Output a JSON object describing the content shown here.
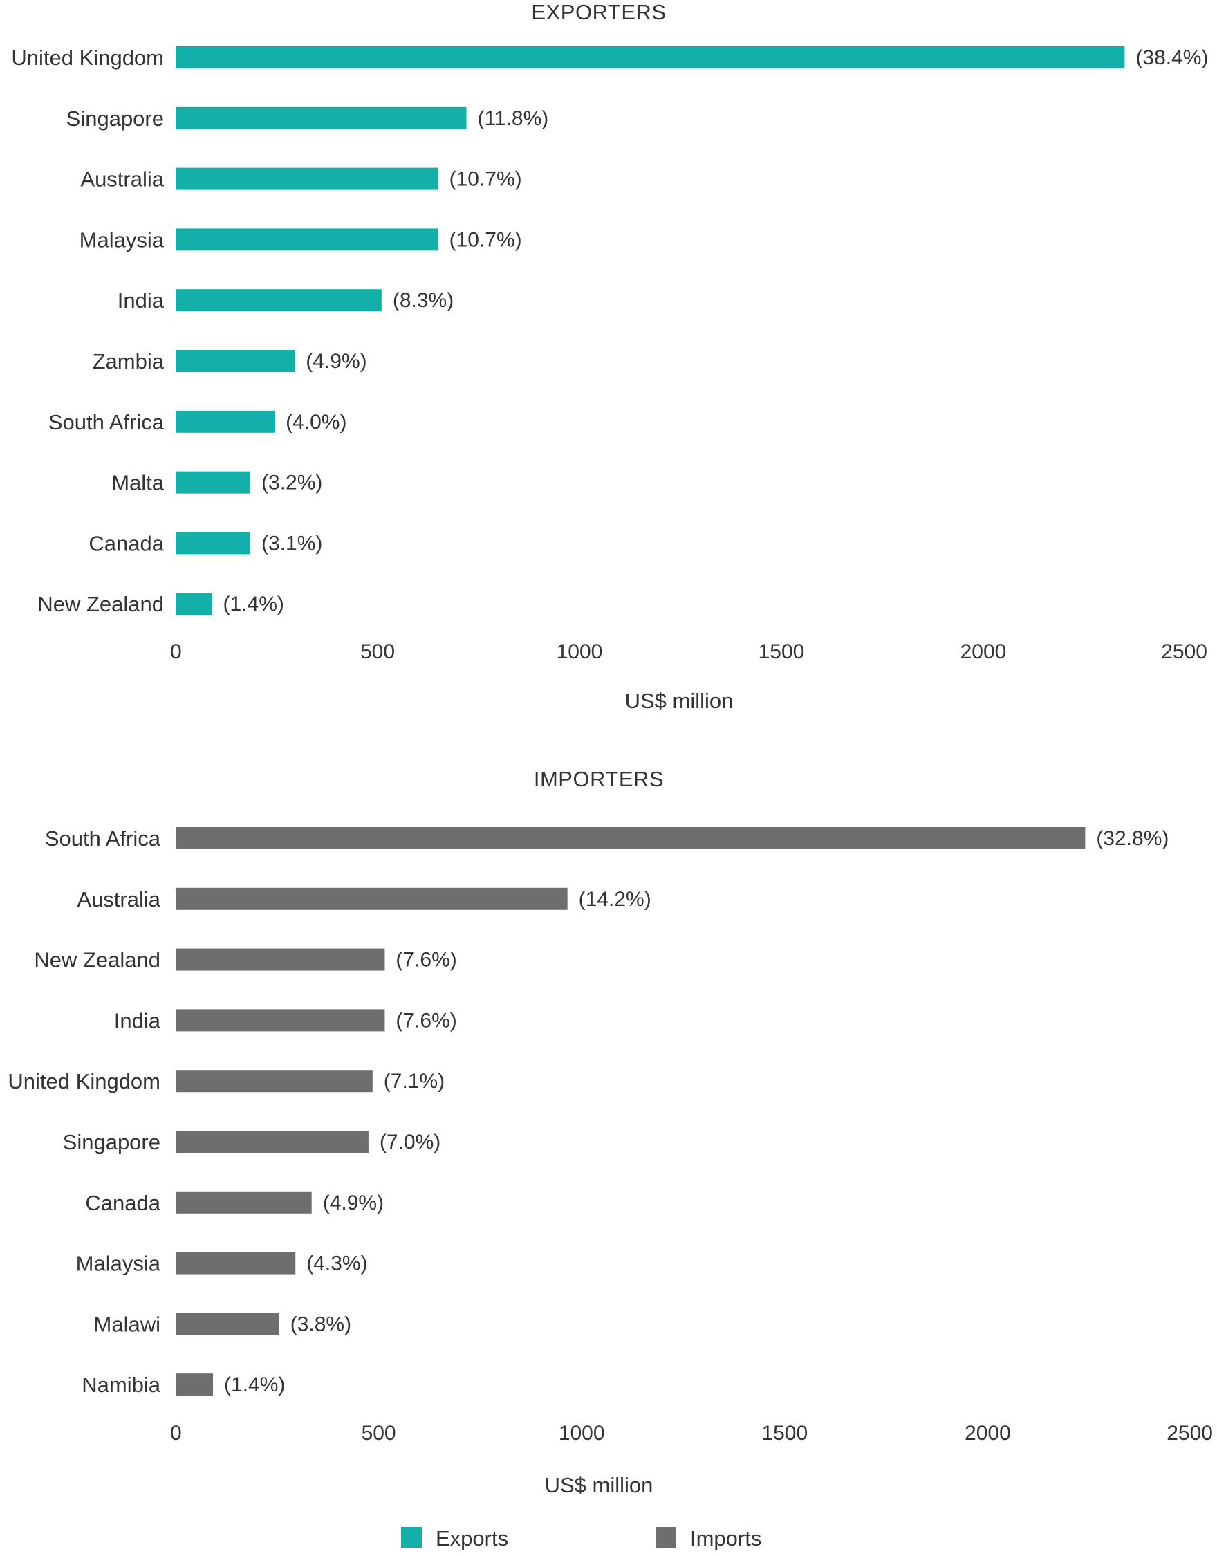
{
  "chart_data": [
    {
      "type": "bar",
      "orientation": "horizontal",
      "title": "EXPORTERS",
      "xlabel": "US$ million",
      "ylabel": "",
      "xlim": [
        0,
        2500
      ],
      "ticks": [
        "0",
        "500",
        "1000",
        "1500",
        "2000",
        "2500"
      ],
      "grid": false,
      "color": "#13b0aa",
      "categories": [
        "United Kingdom",
        "Singapore",
        "Australia",
        "Malaysia",
        "India",
        "Zambia",
        "South Africa",
        "Malta",
        "Canada",
        "New Zealand"
      ],
      "values": [
        2350,
        720,
        650,
        650,
        510,
        295,
        245,
        185,
        185,
        90
      ],
      "data_labels": [
        "(38.4%)",
        "(11.8%)",
        "(10.7%)",
        "(10.7%)",
        "(8.3%)",
        "(4.9%)",
        "(4.0%)",
        "(3.2%)",
        "(3.1%)",
        "(1.4%)"
      ]
    },
    {
      "type": "bar",
      "orientation": "horizontal",
      "title": "IMPORTERS",
      "xlabel": "US$ million",
      "ylabel": "",
      "xlim": [
        0,
        2500
      ],
      "ticks": [
        "0",
        "500",
        "1000",
        "1500",
        "2000",
        "2500"
      ],
      "grid": false,
      "color": "#6d6e70",
      "categories": [
        "South Africa",
        "Australia",
        "New Zealand",
        "India",
        "United Kingdom",
        "Singapore",
        "Canada",
        "Malaysia",
        "Malawi",
        "Namibia"
      ],
      "values": [
        2240,
        965,
        515,
        515,
        485,
        475,
        335,
        295,
        255,
        92
      ],
      "data_labels": [
        "(32.8%)",
        "(14.2%)",
        "(7.6%)",
        "(7.6%)",
        "(7.1%)",
        "(7.0%)",
        "(4.9%)",
        "(4.3%)",
        "(3.8%)",
        "(1.4%)"
      ]
    }
  ],
  "legend": {
    "placement": "bottom-center",
    "items": [
      {
        "label": "Exports",
        "color": "#13b0aa"
      },
      {
        "label": "Imports",
        "color": "#6d6e70"
      }
    ]
  }
}
